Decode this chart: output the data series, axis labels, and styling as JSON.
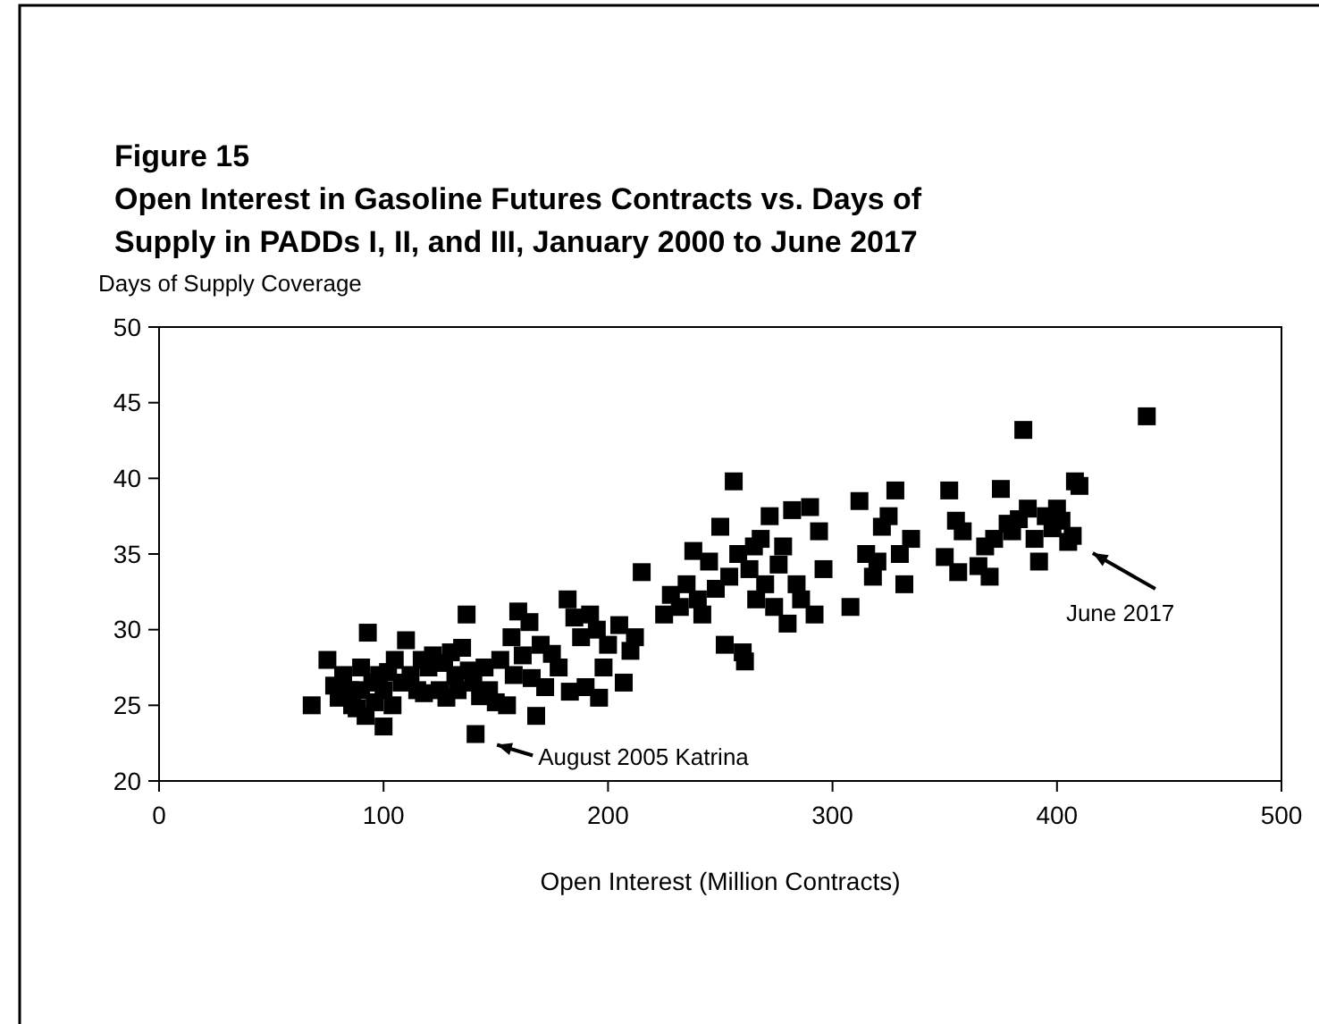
{
  "chart_data": {
    "type": "scatter",
    "title": "Figure 15",
    "subtitle": "Open Interest in Gasoline Futures Contracts vs. Days of Supply in PADDs I, II, and III, January 2000 to June 2017",
    "xlabel": "Open Interest (Million Contracts)",
    "ylabel": "Days of Supply Coverage",
    "marker": "square",
    "grid": false,
    "xlim": [
      0,
      500
    ],
    "xticks": [
      0,
      100,
      200,
      300,
      400,
      500
    ],
    "ylim": [
      20,
      50
    ],
    "yticks": [
      20,
      25,
      30,
      35,
      40,
      45,
      50
    ],
    "annotations": [
      {
        "text": "August 2005 Katrina",
        "x": 141,
        "y": 23.1
      },
      {
        "text": "June 2017",
        "x": 408,
        "y": 36
      }
    ],
    "series": [
      {
        "color": "#000000",
        "x": [
          68,
          75,
          78,
          80,
          82,
          85,
          86,
          88,
          90,
          90,
          92,
          93,
          95,
          96,
          98,
          100,
          100,
          102,
          104,
          105,
          108,
          110,
          112,
          115,
          117,
          118,
          120,
          122,
          125,
          127,
          128,
          130,
          132,
          133,
          135,
          137,
          138,
          140,
          141,
          143,
          145,
          147,
          150,
          152,
          155,
          157,
          158,
          160,
          162,
          165,
          166,
          168,
          170,
          172,
          175,
          178,
          182,
          183,
          185,
          188,
          190,
          192,
          195,
          196,
          198,
          200,
          205,
          207,
          210,
          212,
          215,
          225,
          228,
          232,
          235,
          238,
          240,
          242,
          245,
          248,
          250,
          252,
          254,
          256,
          258,
          260,
          261,
          263,
          265,
          266,
          268,
          270,
          272,
          274,
          276,
          278,
          280,
          282,
          284,
          286,
          290,
          292,
          294,
          296,
          308,
          312,
          315,
          318,
          320,
          322,
          325,
          328,
          330,
          332,
          335,
          350,
          352,
          355,
          356,
          358,
          365,
          368,
          370,
          372,
          375,
          378,
          380,
          383,
          385,
          387,
          390,
          392,
          395,
          398,
          400,
          402,
          405,
          407,
          408,
          410,
          440
        ],
        "values": [
          25,
          28,
          26.3,
          25.5,
          27,
          26,
          25,
          24.8,
          27.5,
          26,
          24.3,
          29.8,
          26.5,
          25.2,
          27,
          23.6,
          26,
          27.2,
          25,
          28,
          26.5,
          29.3,
          27,
          26,
          28,
          25.8,
          27.5,
          28.3,
          26,
          27.8,
          25.5,
          28.5,
          27,
          26,
          28.8,
          31,
          27.3,
          26.5,
          23.1,
          25.6,
          27.5,
          26,
          25.2,
          28,
          25,
          29.5,
          27,
          31.2,
          28.3,
          30.5,
          26.8,
          24.3,
          29,
          26.2,
          28.4,
          27.5,
          32,
          25.9,
          30.8,
          29.5,
          26.2,
          31,
          30,
          25.5,
          27.5,
          29,
          30.3,
          26.5,
          28.6,
          29.5,
          33.8,
          31,
          32.3,
          31.5,
          33,
          35.2,
          32,
          31,
          34.5,
          32.7,
          36.8,
          29,
          33.5,
          39.8,
          35,
          28.5,
          27.9,
          34,
          35.5,
          32,
          36,
          33,
          37.5,
          31.5,
          34.3,
          35.5,
          30.4,
          37.9,
          33,
          32,
          38.1,
          31,
          36.5,
          34,
          31.5,
          38.5,
          35,
          33.5,
          34.5,
          36.8,
          37.5,
          39.2,
          35,
          33,
          36,
          34.8,
          39.2,
          37.2,
          33.8,
          36.5,
          34.2,
          35.5,
          33.5,
          36,
          39.3,
          37,
          36.5,
          37.3,
          43.2,
          38,
          36,
          34.5,
          37.5,
          36.7,
          38,
          37.2,
          35.8,
          36.2,
          39.8,
          39.5,
          44.1
        ]
      }
    ]
  }
}
